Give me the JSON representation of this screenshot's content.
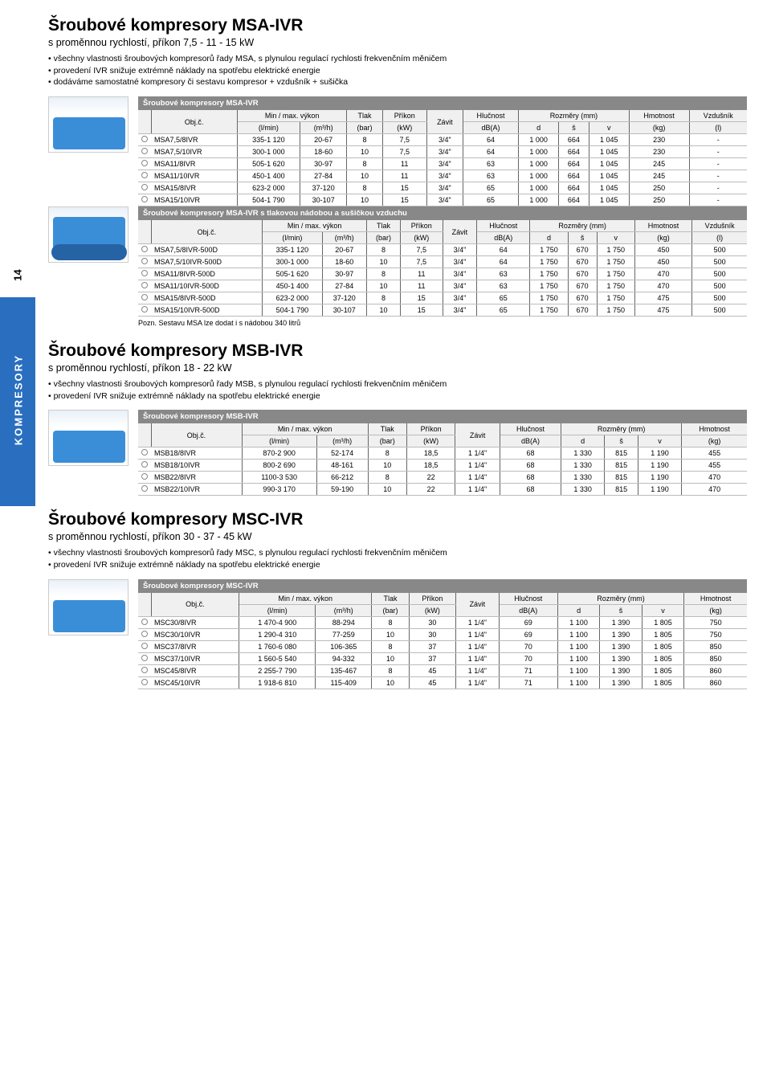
{
  "page_number": "14",
  "side_tab": "KOMPRESORY",
  "sections": [
    {
      "title": "Šroubové kompresory MSA-IVR",
      "subtitle": "s proměnnou rychlostí, příkon 7,5 - 11 - 15 kW",
      "bullets": [
        "všechny vlastnosti šroubových kompresorů řady MSA, s plynulou regulací rychlosti frekvenčním měničem",
        "provedení IVR snižuje extrémně náklady na spotřebu elektrické energie",
        "dodáváme samostatné kompresory či sestavu kompresor + vzdušník + sušička"
      ],
      "thumb_type": "box",
      "tables": [
        {
          "title": "Šroubové kompresory MSA-IVR",
          "has_vzdusnik": true,
          "thumb_inline": true,
          "rows": [
            [
              "MSA7,5/8IVR",
              "335-1 120",
              "20-67",
              "8",
              "7,5",
              "3/4\"",
              "64",
              "1 000",
              "664",
              "1 045",
              "230",
              "-"
            ],
            [
              "MSA7,5/10IVR",
              "300-1 000",
              "18-60",
              "10",
              "7,5",
              "3/4\"",
              "64",
              "1 000",
              "664",
              "1 045",
              "230",
              "-"
            ],
            [
              "MSA11/8IVR",
              "505-1 620",
              "30-97",
              "8",
              "11",
              "3/4\"",
              "63",
              "1 000",
              "664",
              "1 045",
              "245",
              "-"
            ],
            [
              "MSA11/10IVR",
              "450-1 400",
              "27-84",
              "10",
              "11",
              "3/4\"",
              "63",
              "1 000",
              "664",
              "1 045",
              "245",
              "-"
            ],
            [
              "MSA15/8IVR",
              "623-2 000",
              "37-120",
              "8",
              "15",
              "3/4\"",
              "65",
              "1 000",
              "664",
              "1 045",
              "250",
              "-"
            ],
            [
              "MSA15/10IVR",
              "504-1 790",
              "30-107",
              "10",
              "15",
              "3/4\"",
              "65",
              "1 000",
              "664",
              "1 045",
              "250",
              "-"
            ]
          ]
        },
        {
          "title": "Šroubové kompresory MSA-IVR s tlakovou nádobou a sušičkou vzduchu",
          "has_vzdusnik": true,
          "thumb_inline": true,
          "thumb_type": "tank",
          "note": "Pozn. Sestavu MSA lze dodat i s nádobou 340 litrů",
          "rows": [
            [
              "MSA7,5/8IVR-500D",
              "335-1 120",
              "20-67",
              "8",
              "7,5",
              "3/4\"",
              "64",
              "1 750",
              "670",
              "1 750",
              "450",
              "500"
            ],
            [
              "MSA7,5/10IVR-500D",
              "300-1 000",
              "18-60",
              "10",
              "7,5",
              "3/4\"",
              "64",
              "1 750",
              "670",
              "1 750",
              "450",
              "500"
            ],
            [
              "MSA11/8IVR-500D",
              "505-1 620",
              "30-97",
              "8",
              "11",
              "3/4\"",
              "63",
              "1 750",
              "670",
              "1 750",
              "470",
              "500"
            ],
            [
              "MSA11/10IVR-500D",
              "450-1 400",
              "27-84",
              "10",
              "11",
              "3/4\"",
              "63",
              "1 750",
              "670",
              "1 750",
              "470",
              "500"
            ],
            [
              "MSA15/8IVR-500D",
              "623-2 000",
              "37-120",
              "8",
              "15",
              "3/4\"",
              "65",
              "1 750",
              "670",
              "1 750",
              "475",
              "500"
            ],
            [
              "MSA15/10IVR-500D",
              "504-1 790",
              "30-107",
              "10",
              "15",
              "3/4\"",
              "65",
              "1 750",
              "670",
              "1 750",
              "475",
              "500"
            ]
          ]
        }
      ]
    },
    {
      "title": "Šroubové kompresory MSB-IVR",
      "subtitle": "s proměnnou rychlostí, příkon 18 - 22 kW",
      "bullets": [
        "všechny vlastnosti šroubových kompresorů řady MSB, s plynulou regulací rychlosti frekvenčním měničem",
        "provedení IVR snižuje extrémně náklady na spotřebu elektrické energie"
      ],
      "thumb_type": "box",
      "tables": [
        {
          "title": "Šroubové kompresory MSB-IVR",
          "has_vzdusnik": false,
          "thumb_inline": true,
          "rows": [
            [
              "MSB18/8IVR",
              "870-2 900",
              "52-174",
              "8",
              "18,5",
              "1 1/4\"",
              "68",
              "1 330",
              "815",
              "1 190",
              "455"
            ],
            [
              "MSB18/10IVR",
              "800-2 690",
              "48-161",
              "10",
              "18,5",
              "1 1/4\"",
              "68",
              "1 330",
              "815",
              "1 190",
              "455"
            ],
            [
              "MSB22/8IVR",
              "1100-3 530",
              "66-212",
              "8",
              "22",
              "1 1/4\"",
              "68",
              "1 330",
              "815",
              "1 190",
              "470"
            ],
            [
              "MSB22/10IVR",
              "990-3 170",
              "59-190",
              "10",
              "22",
              "1 1/4\"",
              "68",
              "1 330",
              "815",
              "1 190",
              "470"
            ]
          ]
        }
      ]
    },
    {
      "title": "Šroubové kompresory MSC-IVR",
      "subtitle": "s proměnnou rychlostí, příkon 30 - 37 - 45 kW",
      "bullets": [
        "všechny vlastnosti šroubových kompresorů řady MSC, s plynulou regulací rychlosti frekvenčním měničem",
        "provedení IVR snižuje extrémně náklady na spotřebu elektrické energie"
      ],
      "thumb_type": "box",
      "tables": [
        {
          "title": "Šroubové kompresory MSC-IVR",
          "has_vzdusnik": false,
          "thumb_inline": true,
          "rows": [
            [
              "MSC30/8IVR",
              "1 470-4 900",
              "88-294",
              "8",
              "30",
              "1 1/4\"",
              "69",
              "1 100",
              "1 390",
              "1 805",
              "750"
            ],
            [
              "MSC30/10IVR",
              "1 290-4 310",
              "77-259",
              "10",
              "30",
              "1 1/4\"",
              "69",
              "1 100",
              "1 390",
              "1 805",
              "750"
            ],
            [
              "MSC37/8IVR",
              "1 760-6 080",
              "106-365",
              "8",
              "37",
              "1 1/4\"",
              "70",
              "1 100",
              "1 390",
              "1 805",
              "850"
            ],
            [
              "MSC37/10IVR",
              "1 560-5 540",
              "94-332",
              "10",
              "37",
              "1 1/4\"",
              "70",
              "1 100",
              "1 390",
              "1 805",
              "850"
            ],
            [
              "MSC45/8IVR",
              "2 255-7 790",
              "135-467",
              "8",
              "45",
              "1 1/4\"",
              "71",
              "1 100",
              "1 390",
              "1 805",
              "860"
            ],
            [
              "MSC45/10IVR",
              "1 918-6 810",
              "115-409",
              "10",
              "45",
              "1 1/4\"",
              "71",
              "1 100",
              "1 390",
              "1 805",
              "860"
            ]
          ]
        }
      ]
    }
  ],
  "headers": {
    "obj": "Obj.č.",
    "minmax": "Min / max. výkon",
    "lmin": "(l/min)",
    "m3h": "(m³/h)",
    "tlak": "Tlak",
    "bar": "(bar)",
    "prikon": "Příkon",
    "kw": "(kW)",
    "zavit": "Závit",
    "hluc": "Hlučnost",
    "dba": "dB(A)",
    "rozm": "Rozměry (mm)",
    "d": "d",
    "s": "š",
    "v": "v",
    "hmot": "Hmotnost",
    "kg": "(kg)",
    "vzd": "Vzdušník",
    "l": "(l)"
  }
}
